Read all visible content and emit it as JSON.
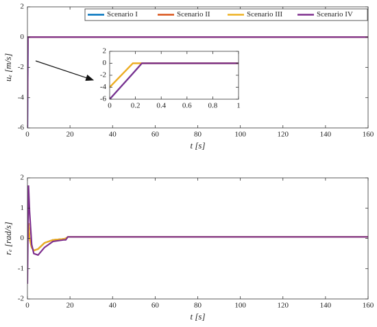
{
  "chart_data": [
    {
      "type": "line",
      "xlabel": "t [s]",
      "ylabel": "uₑ [m/s]",
      "x": [
        0,
        0.18,
        0.25,
        160
      ],
      "series": [
        {
          "name": "Scenario I",
          "color": "#0072bd",
          "values": [
            -6,
            -1.7,
            0,
            0
          ]
        },
        {
          "name": "Scenario II",
          "color": "#d95319",
          "values": [
            -4,
            0,
            0,
            0
          ]
        },
        {
          "name": "Scenario III",
          "color": "#edb120",
          "values": [
            -4,
            0,
            0,
            0
          ]
        },
        {
          "name": "Scenario IV",
          "color": "#7e2f8e",
          "values": [
            -6,
            -1.7,
            0,
            0
          ]
        }
      ],
      "xlim": [
        0,
        160
      ],
      "xticks": [
        0,
        20,
        40,
        60,
        80,
        100,
        120,
        140,
        160
      ],
      "ylim": [
        -6,
        2
      ],
      "yticks": [
        -6,
        -4,
        -2,
        0,
        2
      ],
      "legend": "top-right",
      "grid": false
    },
    {
      "type": "line",
      "xlim": [
        0,
        1
      ],
      "xticks": [
        0,
        0.2,
        0.4,
        0.6,
        0.8,
        1
      ],
      "ylim": [
        -6,
        2
      ],
      "yticks": [
        -6,
        -4,
        -2,
        0,
        2
      ],
      "grid": false
    },
    {
      "type": "line",
      "xlabel": "t [s]",
      "ylabel": "rₑ [rad/s]",
      "x": [
        0,
        0.5,
        1,
        2,
        3,
        5,
        8,
        12,
        17,
        18,
        19,
        20,
        30,
        160
      ],
      "series": [
        {
          "name": "Scenario I",
          "color": "#0072bd",
          "values": [
            0.4,
            0.5,
            0,
            -0.3,
            -0.4,
            -0.35,
            -0.15,
            -0.05,
            -0.02,
            0,
            0.05,
            0.05,
            0.05,
            0.05
          ]
        },
        {
          "name": "Scenario II",
          "color": "#d95319",
          "values": [
            0.4,
            0.5,
            0,
            -0.3,
            -0.4,
            -0.35,
            -0.15,
            -0.05,
            -0.02,
            0,
            0.05,
            0.05,
            0.05,
            0.05
          ]
        },
        {
          "name": "Scenario III",
          "color": "#edb120",
          "values": [
            0.4,
            0.5,
            0,
            -0.3,
            -0.4,
            -0.35,
            -0.15,
            -0.05,
            -0.02,
            0,
            0.05,
            0.05,
            0.05,
            0.05
          ]
        },
        {
          "name": "Scenario IV",
          "color": "#7e2f8e",
          "values": [
            -1.5,
            1.75,
            0.9,
            -0.2,
            -0.5,
            -0.55,
            -0.3,
            -0.1,
            -0.05,
            -0.05,
            0.05,
            0.05,
            0.05,
            0.05
          ]
        }
      ],
      "xlim": [
        0,
        160
      ],
      "xticks": [
        0,
        20,
        40,
        60,
        80,
        100,
        120,
        140,
        160
      ],
      "ylim": [
        -2,
        2
      ],
      "yticks": [
        -2,
        -1,
        0,
        1,
        2
      ],
      "grid": false
    }
  ]
}
